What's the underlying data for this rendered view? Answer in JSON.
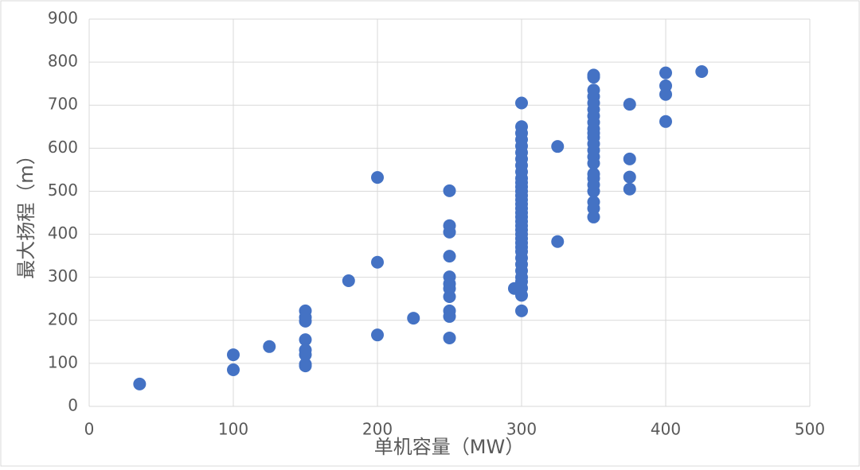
{
  "chart_data": {
    "type": "scatter",
    "x_label": "单机容量（MW）",
    "y_label": "最大扬程（m）",
    "color": "#4472c4",
    "grid": true,
    "xlim": [
      0,
      500
    ],
    "xticks": [
      0,
      100,
      200,
      300,
      400,
      500
    ],
    "ylim": [
      0,
      900
    ],
    "yticks": [
      0,
      100,
      200,
      300,
      400,
      500,
      600,
      700,
      800,
      900
    ],
    "x": [
      35,
      100,
      100,
      125,
      150,
      150,
      150,
      150,
      150,
      150,
      150,
      150,
      180,
      200,
      200,
      200,
      225,
      250,
      250,
      250,
      250,
      250,
      250,
      250,
      250,
      250,
      250,
      250,
      295,
      300,
      300,
      300,
      300,
      300,
      300,
      300,
      300,
      300,
      300,
      300,
      300,
      300,
      300,
      300,
      300,
      300,
      300,
      300,
      300,
      300,
      300,
      300,
      300,
      300,
      300,
      300,
      300,
      300,
      300,
      300,
      300,
      300,
      300,
      300,
      325,
      325,
      350,
      350,
      350,
      350,
      350,
      350,
      350,
      350,
      350,
      350,
      350,
      350,
      350,
      350,
      350,
      350,
      350,
      350,
      350,
      350,
      350,
      350,
      375,
      375,
      375,
      375,
      400,
      400,
      400,
      400,
      425
    ],
    "y": [
      52,
      120,
      85,
      139,
      222,
      207,
      198,
      155,
      131,
      120,
      98,
      94,
      292,
      532,
      335,
      166,
      205,
      501,
      420,
      405,
      349,
      301,
      285,
      274,
      255,
      222,
      209,
      159,
      274,
      705,
      650,
      635,
      620,
      605,
      590,
      575,
      560,
      545,
      530,
      520,
      510,
      500,
      490,
      480,
      470,
      460,
      450,
      440,
      430,
      420,
      410,
      400,
      390,
      380,
      370,
      360,
      345,
      330,
      315,
      300,
      290,
      275,
      258,
      222,
      604,
      383,
      770,
      765,
      735,
      720,
      705,
      690,
      675,
      660,
      645,
      635,
      625,
      610,
      595,
      580,
      565,
      540,
      530,
      515,
      500,
      475,
      460,
      440,
      702,
      575,
      533,
      505,
      775,
      745,
      725,
      662,
      778
    ]
  }
}
